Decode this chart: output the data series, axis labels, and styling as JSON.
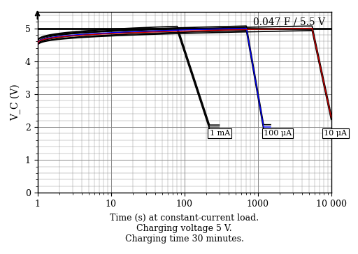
{
  "title_text": "0.047 F / 5.5 V",
  "xlabel_line1": "Time (s) at constant-current load.",
  "xlabel_line2": "Charging voltage 5 V.",
  "xlabel_line3": "Charging time 30 minutes.",
  "ylabel": "V_C (V)",
  "xmin": 1,
  "xmax": 10000,
  "ymin": 0,
  "ymax": 5.5,
  "yticks": [
    0,
    1,
    2,
    3,
    4,
    5
  ],
  "background_color": "#ffffff",
  "grid_color": "#888888",
  "curve_1mA_color": "#000000",
  "curve_100uA_color_outer": "#000000",
  "curve_100uA_color_inner": "#0000ff",
  "curve_10uA_color_outer": "#000000",
  "curve_10uA_color_inner": "#cc0000",
  "label_1mA": "1 mA",
  "label_100uA": "100 μA",
  "label_10uA": "10 μA",
  "top_line_voltage": 5.0,
  "start_voltage": 4.5,
  "charge_voltage": 5.0
}
